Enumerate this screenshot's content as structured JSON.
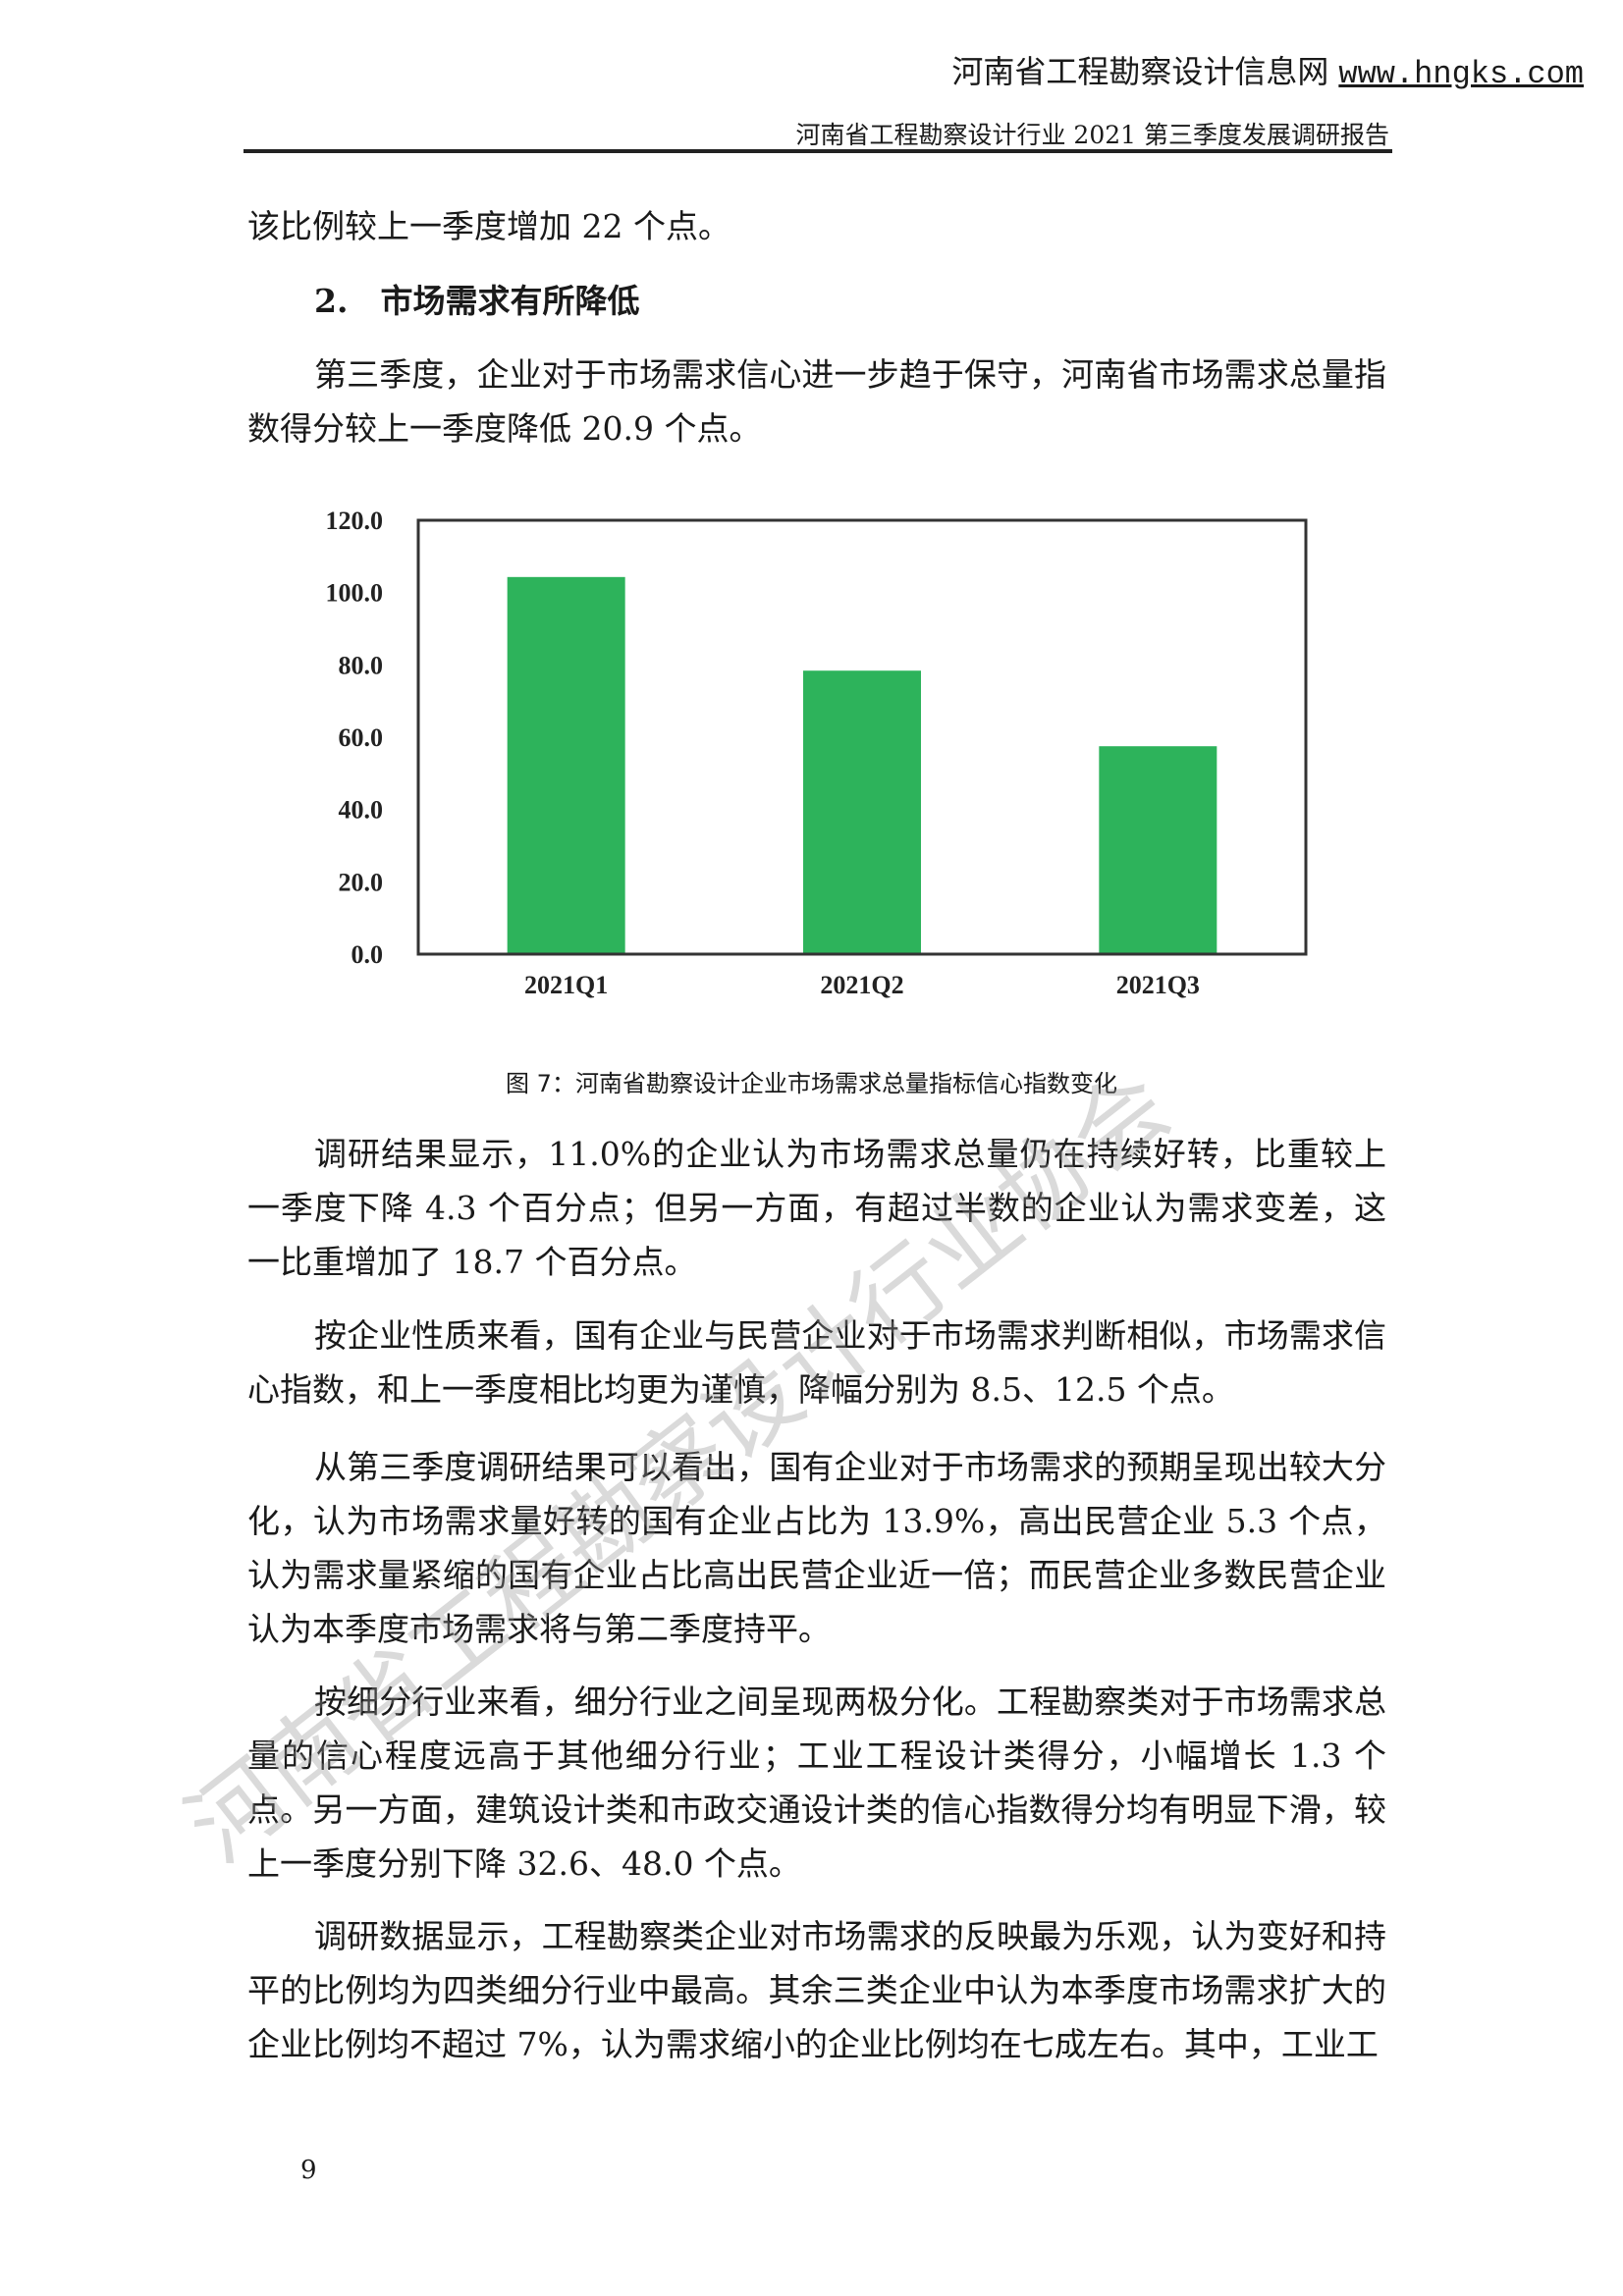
{
  "header": {
    "site_name": "河南省工程勘察设计信息网",
    "site_url": "www.hngks.com",
    "report_title": "河南省工程勘察设计行业 2021 第三季度发展调研报告"
  },
  "paragraphs": {
    "p0": "该比例较上一季度增加 22 个点。",
    "heading": "2.　市场需求有所降低",
    "p1": "第三季度，企业对于市场需求信心进一步趋于保守，河南省市场需求总量指数得分较上一季度降低 20.9 个点。",
    "p2": "调研结果显示，11.0%的企业认为市场需求总量仍在持续好转，比重较上一季度下降 4.3 个百分点；但另一方面，有超过半数的企业认为需求变差，这一比重增加了 18.7 个百分点。",
    "p3": "按企业性质来看，国有企业与民营企业对于市场需求判断相似，市场需求信心指数，和上一季度相比均更为谨慎，降幅分别为 8.5、12.5 个点。",
    "p4": "从第三季度调研结果可以看出，国有企业对于市场需求的预期呈现出较大分化，认为市场需求量好转的国有企业占比为 13.9%，高出民营企业 5.3 个点，认为需求量紧缩的国有企业占比高出民营企业近一倍；而民营企业多数民营企业认为本季度市场需求将与第二季度持平。",
    "p5": "按细分行业来看，细分行业之间呈现两极分化。工程勘察类对于市场需求总量的信心程度远高于其他细分行业；工业工程设计类得分，小幅增长 1.3 个点。另一方面，建筑设计类和市政交通设计类的信心指数得分均有明显下滑，较上一季度分别下降 32.6、48.0 个点。",
    "p6": "调研数据显示，工程勘察类企业对市场需求的反映最为乐观，认为变好和持平的比例均为四类细分行业中最高。其余三类企业中认为本季度市场需求扩大的企业比例均不超过 7%，认为需求缩小的企业比例均在七成左右。其中，工业工"
  },
  "figure_caption": "图 7：河南省勘察设计企业市场需求总量指标信心指数变化",
  "page_number": "9",
  "watermark": "河南省工程勘察设计行业协会",
  "chart_data": {
    "type": "bar",
    "categories": [
      "2021Q1",
      "2021Q2",
      "2021Q3"
    ],
    "values": [
      104.3,
      78.4,
      57.5
    ],
    "yticks": [
      "0.0",
      "20.0",
      "40.0",
      "60.0",
      "80.0",
      "100.0",
      "120.0"
    ],
    "ylim": [
      0,
      120
    ],
    "bar_color": "#2db35b",
    "grid": false,
    "legend": "none"
  }
}
